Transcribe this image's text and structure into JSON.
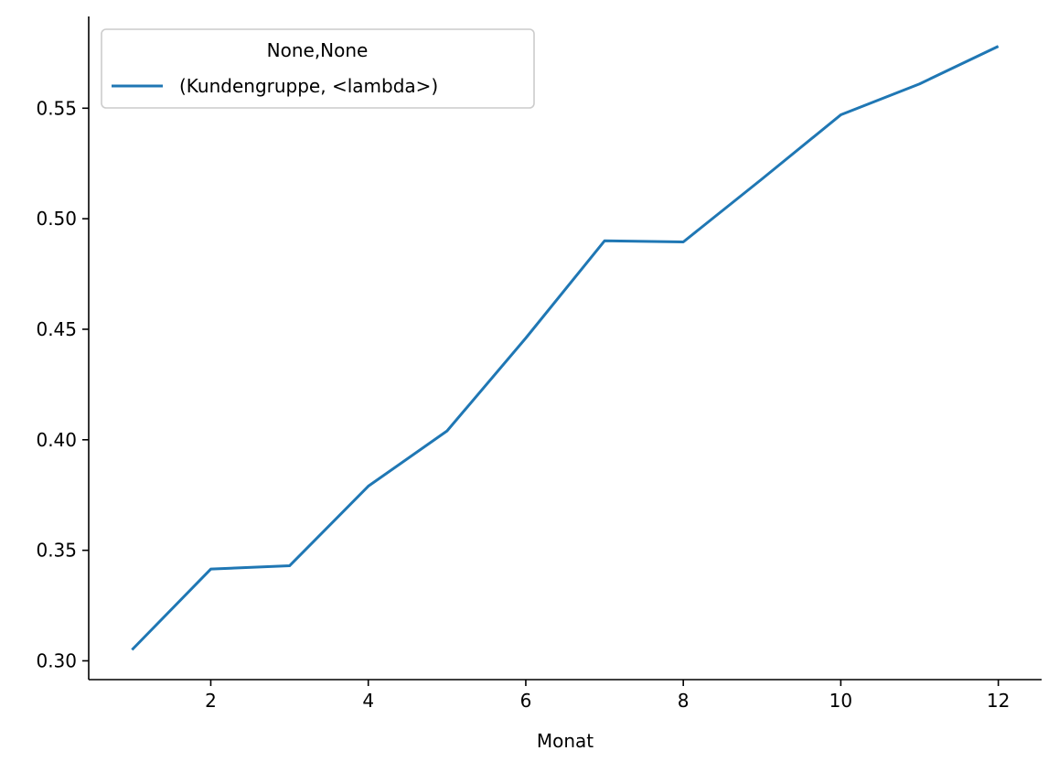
{
  "chart_data": {
    "type": "line",
    "xlabel": "Monat",
    "ylabel": "",
    "xlim": [
      0.45,
      12.55
    ],
    "ylim": [
      0.2915,
      0.5915
    ],
    "x_ticks": [
      2,
      4,
      6,
      8,
      10,
      12
    ],
    "x_tick_labels": [
      "2",
      "4",
      "6",
      "8",
      "10",
      "12"
    ],
    "y_ticks": [
      0.3,
      0.35,
      0.4,
      0.45,
      0.5,
      0.55
    ],
    "y_tick_labels": [
      "0.30",
      "0.35",
      "0.40",
      "0.45",
      "0.50",
      "0.55"
    ],
    "grid": false,
    "legend": {
      "title": "None,None",
      "placement": "upper-left"
    },
    "series": [
      {
        "name": "(Kundengruppe, <lambda>)",
        "color": "#1f77b4",
        "x": [
          1,
          2,
          3,
          4,
          5,
          6,
          7,
          8,
          9,
          10,
          11,
          12
        ],
        "y": [
          0.305,
          0.3415,
          0.343,
          0.379,
          0.404,
          0.446,
          0.49,
          0.4895,
          0.518,
          0.547,
          0.561,
          0.578
        ]
      }
    ]
  }
}
